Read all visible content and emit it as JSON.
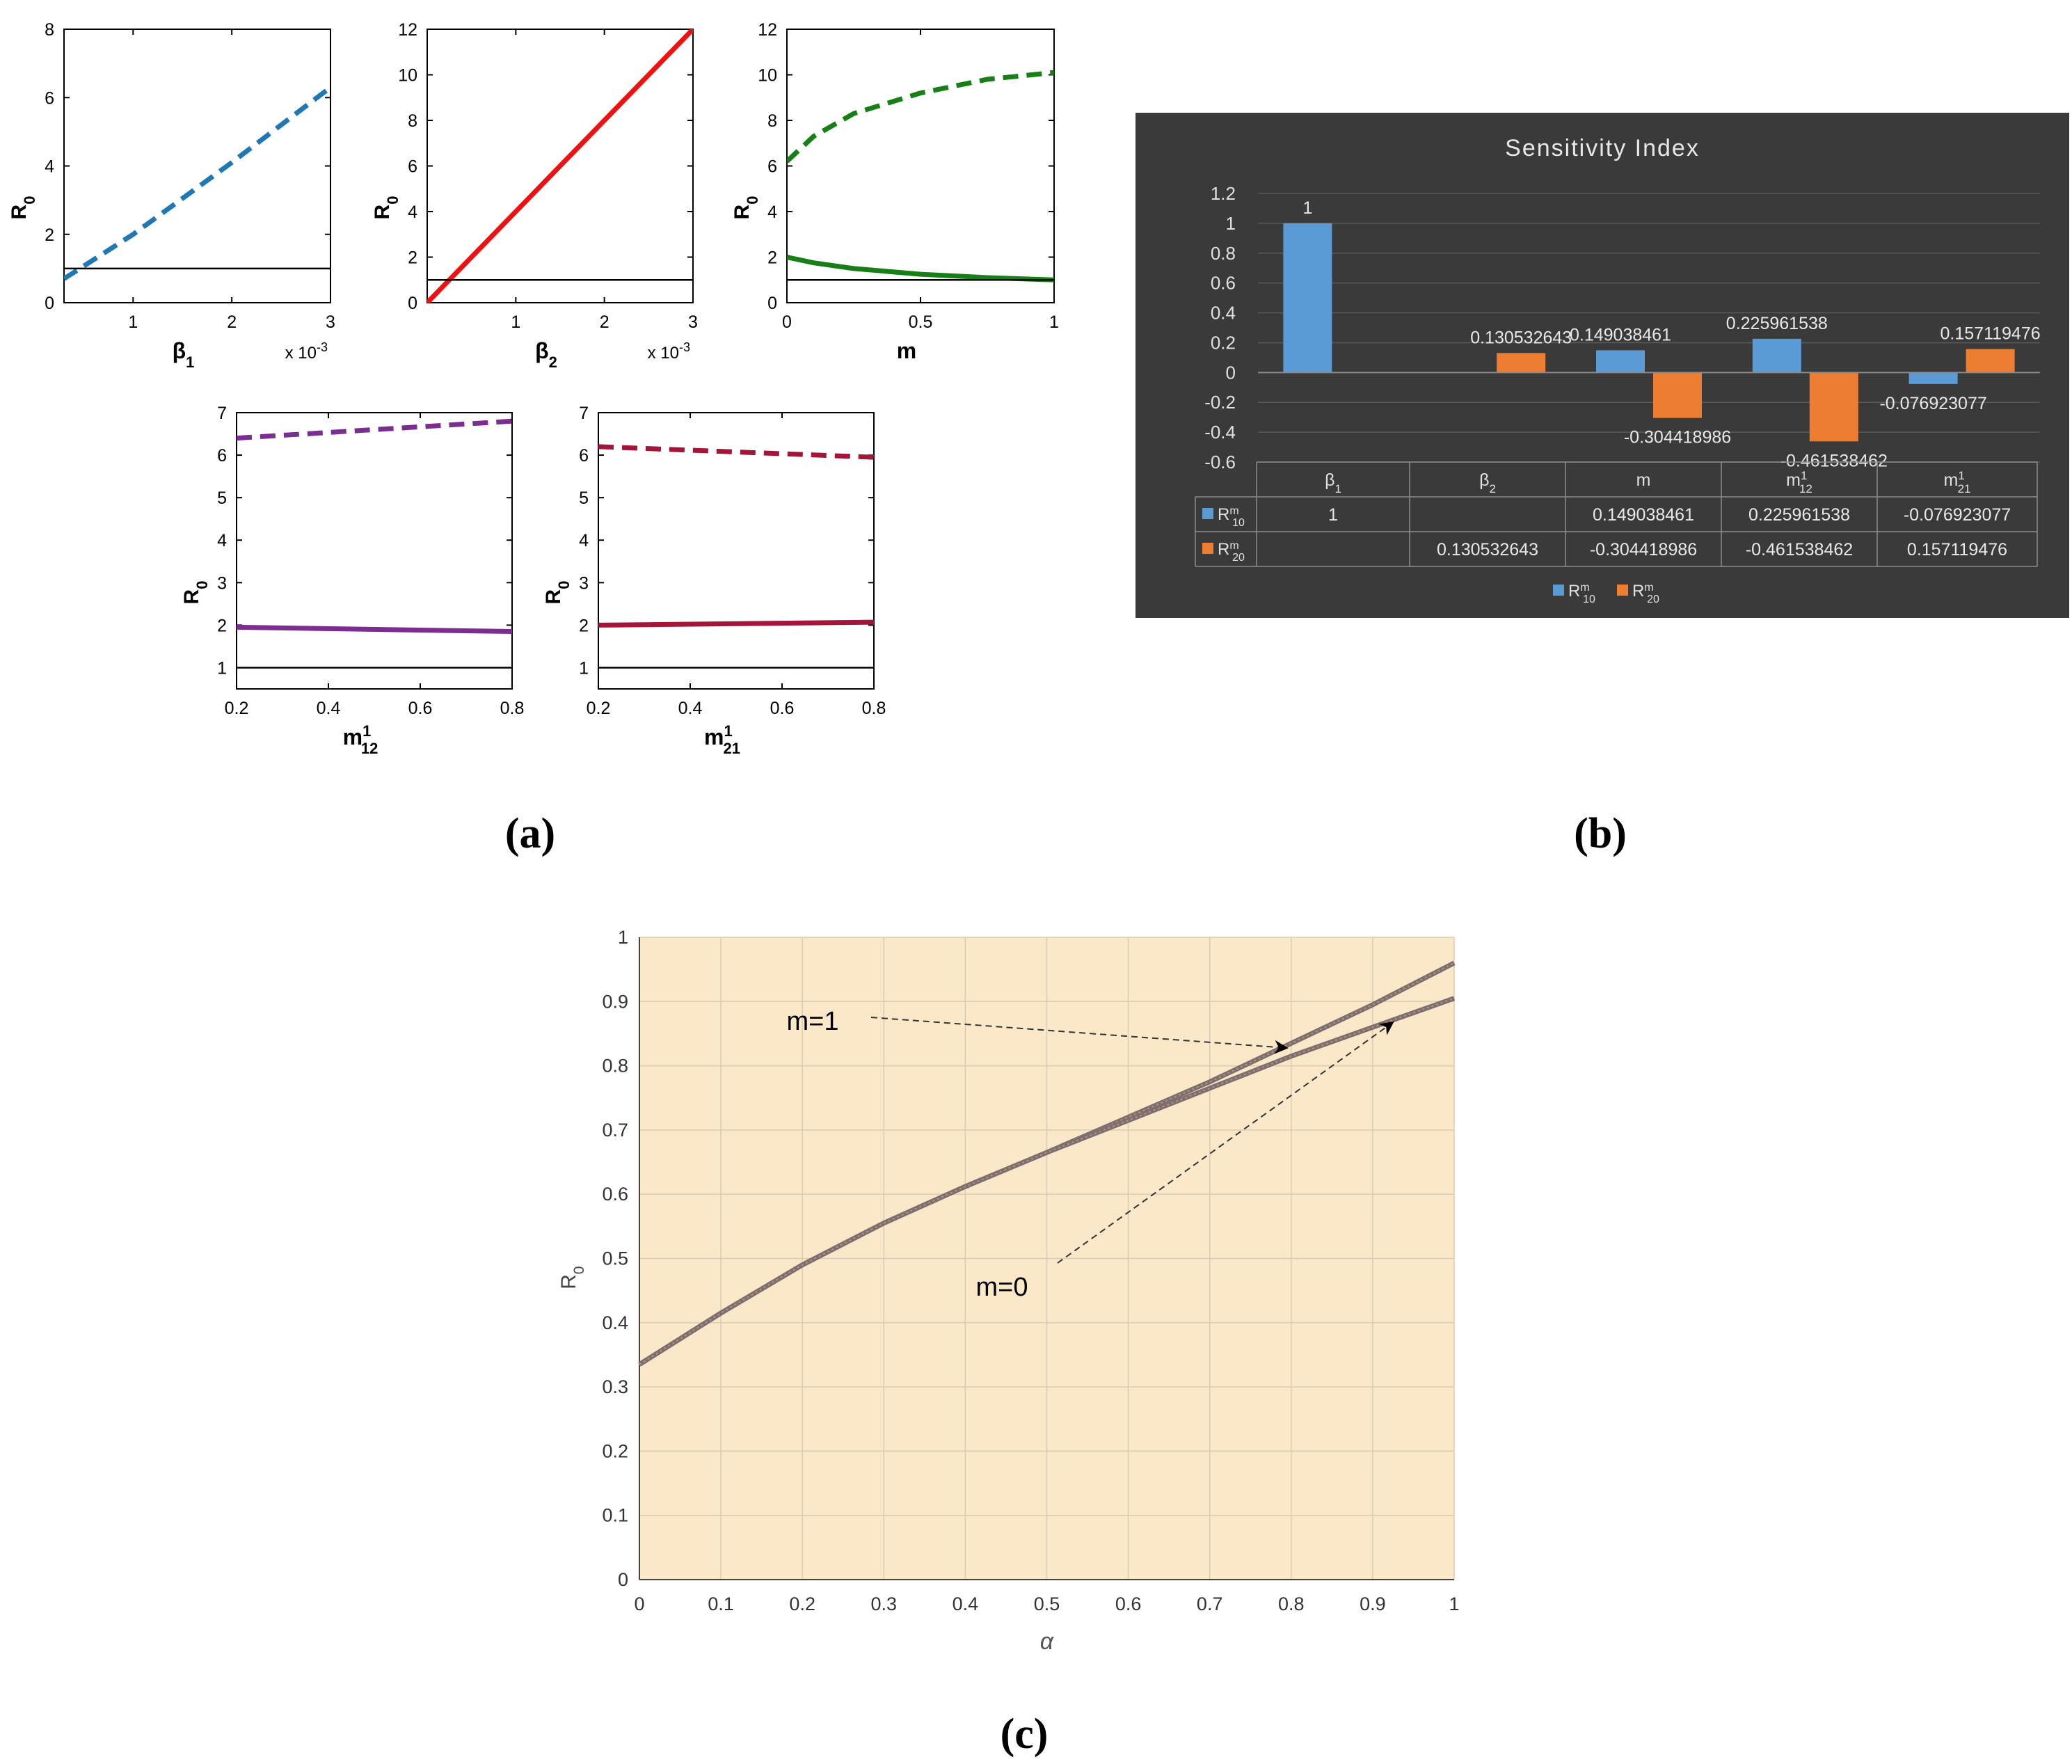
{
  "panel_labels": {
    "a": "(a)",
    "b": "(b)",
    "c": "(c)"
  },
  "colors": {
    "blue": "#1f77b4",
    "red": "#ee1111",
    "green": "#168016",
    "purple": "#7d2d91",
    "crimson": "#a3163a",
    "black": "#000000",
    "bar_blue": "#5b9bd5",
    "bar_orange": "#ed7d31",
    "dark_bg": "#3a3a3a",
    "orange_bg": "#fae8c8",
    "curve": "#7a7070"
  },
  "chart_data": [
    {
      "id": "beta1",
      "type": "line",
      "xlabel": "β",
      "xlabel_sub": "1",
      "x_multiplier": "x 10",
      "x_multiplier_exp": "-3",
      "ylabel": "R",
      "ylabel_sub": "0",
      "xlim": [
        0.3,
        3
      ],
      "ylim": [
        0,
        8
      ],
      "xticks": [
        1,
        2,
        3
      ],
      "xtick_labels": [
        "1",
        "2",
        "3"
      ],
      "yticks": [
        0,
        2,
        4,
        6,
        8
      ],
      "ytick_labels": [
        "0",
        "2",
        "4",
        "6",
        "8"
      ],
      "series": [
        {
          "name": "dashed",
          "style": "dashed",
          "color": "blue",
          "x": [
            0.3,
            1,
            2,
            3
          ],
          "y": [
            0.7,
            2.0,
            4.1,
            6.3
          ]
        },
        {
          "name": "threshold",
          "style": "solid",
          "color": "black",
          "x": [
            0.3,
            3
          ],
          "y": [
            1,
            1
          ]
        }
      ]
    },
    {
      "id": "beta2",
      "type": "line",
      "xlabel": "β",
      "xlabel_sub": "2",
      "x_multiplier": "x 10",
      "x_multiplier_exp": "-3",
      "ylabel": "R",
      "ylabel_sub": "0",
      "xlim": [
        0,
        3
      ],
      "ylim": [
        0,
        12
      ],
      "xticks": [
        1,
        2,
        3
      ],
      "xtick_labels": [
        "1",
        "2",
        "3"
      ],
      "yticks": [
        0,
        2,
        4,
        6,
        8,
        10,
        12
      ],
      "ytick_labels": [
        "0",
        "2",
        "4",
        "6",
        "8",
        "10",
        "12"
      ],
      "series": [
        {
          "name": "solid-red",
          "style": "solid",
          "color": "red",
          "x": [
            0,
            3
          ],
          "y": [
            0,
            12
          ]
        },
        {
          "name": "threshold",
          "style": "solid",
          "color": "black",
          "x": [
            0,
            3
          ],
          "y": [
            1,
            1
          ]
        }
      ]
    },
    {
      "id": "m",
      "type": "line",
      "xlabel": "m",
      "xlabel_sub": "",
      "x_multiplier": "",
      "x_multiplier_exp": "",
      "ylabel": "R",
      "ylabel_sub": "0",
      "xlim": [
        0,
        1
      ],
      "ylim": [
        0,
        12
      ],
      "xticks": [
        0,
        0.5,
        1
      ],
      "xtick_labels": [
        "0",
        "0.5",
        "1"
      ],
      "yticks": [
        0,
        2,
        4,
        6,
        8,
        10,
        12
      ],
      "ytick_labels": [
        "0",
        "2",
        "4",
        "6",
        "8",
        "10",
        "12"
      ],
      "series": [
        {
          "name": "dashed-green",
          "style": "dashed",
          "color": "green",
          "x": [
            0,
            0.1,
            0.25,
            0.5,
            0.75,
            1
          ],
          "y": [
            6.2,
            7.3,
            8.3,
            9.2,
            9.8,
            10.1
          ]
        },
        {
          "name": "solid-green",
          "style": "solid",
          "color": "green",
          "x": [
            0,
            0.1,
            0.25,
            0.5,
            0.75,
            1
          ],
          "y": [
            2.0,
            1.75,
            1.5,
            1.25,
            1.1,
            1.0
          ]
        },
        {
          "name": "threshold",
          "style": "solid",
          "color": "black",
          "x": [
            0,
            1
          ],
          "y": [
            1,
            1
          ]
        }
      ]
    },
    {
      "id": "m12",
      "type": "line",
      "xlabel": "m",
      "xlabel_sub": "12",
      "xlabel_sup": "1",
      "x_multiplier": "",
      "x_multiplier_exp": "",
      "ylabel": "R",
      "ylabel_sub": "0",
      "xlim": [
        0.2,
        0.8
      ],
      "ylim": [
        0.5,
        7
      ],
      "xticks": [
        0.2,
        0.4,
        0.6,
        0.8
      ],
      "xtick_labels": [
        "0.2",
        "0.4",
        "0.6",
        "0.8"
      ],
      "yticks": [
        1,
        2,
        3,
        4,
        5,
        6,
        7
      ],
      "ytick_labels": [
        "1",
        "2",
        "3",
        "4",
        "5",
        "6",
        "7"
      ],
      "series": [
        {
          "name": "dashed-purple",
          "style": "dashed",
          "color": "purple",
          "x": [
            0.2,
            0.8
          ],
          "y": [
            6.4,
            6.8
          ]
        },
        {
          "name": "solid-purple",
          "style": "solid",
          "color": "purple",
          "x": [
            0.2,
            0.8
          ],
          "y": [
            1.95,
            1.85
          ]
        },
        {
          "name": "threshold",
          "style": "solid",
          "color": "black",
          "x": [
            0.2,
            0.8
          ],
          "y": [
            1,
            1
          ]
        }
      ]
    },
    {
      "id": "m21",
      "type": "line",
      "xlabel": "m",
      "xlabel_sub": "21",
      "xlabel_sup": "1",
      "x_multiplier": "",
      "x_multiplier_exp": "",
      "ylabel": "R",
      "ylabel_sub": "0",
      "xlim": [
        0.2,
        0.8
      ],
      "ylim": [
        0.5,
        7
      ],
      "xticks": [
        0.2,
        0.4,
        0.6,
        0.8
      ],
      "xtick_labels": [
        "0.2",
        "0.4",
        "0.6",
        "0.8"
      ],
      "yticks": [
        1,
        2,
        3,
        4,
        5,
        6,
        7
      ],
      "ytick_labels": [
        "1",
        "2",
        "3",
        "4",
        "5",
        "6",
        "7"
      ],
      "series": [
        {
          "name": "dashed-crimson",
          "style": "dashed",
          "color": "crimson",
          "x": [
            0.2,
            0.8
          ],
          "y": [
            6.2,
            5.95
          ]
        },
        {
          "name": "solid-crimson",
          "style": "solid",
          "color": "crimson",
          "x": [
            0.2,
            0.8
          ],
          "y": [
            2.0,
            2.07
          ]
        },
        {
          "name": "threshold",
          "style": "solid",
          "color": "black",
          "x": [
            0.2,
            0.8
          ],
          "y": [
            1,
            1
          ]
        }
      ]
    },
    {
      "id": "sensitivity",
      "type": "bar",
      "title": "Sensitivity Index",
      "categories": [
        "β1",
        "β2",
        "m",
        "m12¹",
        "m21¹"
      ],
      "category_labels": [
        {
          "base": "β",
          "sub": "1",
          "sup": ""
        },
        {
          "base": "β",
          "sub": "2",
          "sup": ""
        },
        {
          "base": "m",
          "sub": "",
          "sup": ""
        },
        {
          "base": "m",
          "sub": "12",
          "sup": "1"
        },
        {
          "base": "m",
          "sub": "21",
          "sup": "1"
        }
      ],
      "ylim": [
        -0.6,
        1.2
      ],
      "yticks": [
        -0.6,
        -0.4,
        -0.2,
        0,
        0.2,
        0.4,
        0.6,
        0.8,
        1,
        1.2
      ],
      "ytick_labels": [
        "-0.6",
        "-0.4",
        "-0.2",
        "0",
        "0.2",
        "0.4",
        "0.6",
        "0.8",
        "1",
        "1.2"
      ],
      "series": [
        {
          "name": "R10m",
          "label_base": "R",
          "label_sub": "10",
          "label_sup": "m",
          "color": "bar_blue",
          "values": [
            1,
            null,
            0.149038461,
            0.225961538,
            -0.076923077
          ],
          "value_labels": [
            "1",
            "",
            "0.149038461",
            "0.225961538",
            "-0.076923077"
          ],
          "table_labels": [
            "1",
            "",
            "0.149038461",
            "0.225961538",
            "-0.076923077"
          ]
        },
        {
          "name": "R20m",
          "label_base": "R",
          "label_sub": "20",
          "label_sup": "m",
          "color": "bar_orange",
          "values": [
            null,
            0.130532643,
            -0.304418986,
            -0.461538462,
            0.157119476
          ],
          "value_labels": [
            "",
            "0.130532643",
            "-0.304418986",
            "-0.461538462",
            "0.157119476"
          ],
          "table_labels": [
            "",
            "0.130532643",
            "-0.304418986",
            "-0.461538462",
            "0.157119476"
          ]
        }
      ],
      "legend": "bottom"
    },
    {
      "id": "alpha",
      "type": "line",
      "xlabel": "α",
      "ylabel": "R",
      "ylabel_sub": "0",
      "xlim": [
        0,
        1
      ],
      "ylim": [
        0,
        1
      ],
      "xticks": [
        0,
        0.1,
        0.2,
        0.3,
        0.4,
        0.5,
        0.6,
        0.7,
        0.8,
        0.9,
        1
      ],
      "xtick_labels": [
        "0",
        "0.1",
        "0.2",
        "0.3",
        "0.4",
        "0.5",
        "0.6",
        "0.7",
        "0.8",
        "0.9",
        "1"
      ],
      "yticks": [
        0,
        0.1,
        0.2,
        0.3,
        0.4,
        0.5,
        0.6,
        0.7,
        0.8,
        0.9,
        1
      ],
      "ytick_labels": [
        "0",
        "0.1",
        "0.2",
        "0.3",
        "0.4",
        "0.5",
        "0.6",
        "0.7",
        "0.8",
        "0.9",
        "1"
      ],
      "grid": true,
      "series": [
        {
          "name": "m=1",
          "x": [
            0,
            0.1,
            0.2,
            0.3,
            0.4,
            0.5,
            0.6,
            0.7,
            0.8,
            0.9,
            1
          ],
          "y": [
            0.335,
            0.415,
            0.49,
            0.555,
            0.612,
            0.665,
            0.72,
            0.775,
            0.835,
            0.895,
            0.96
          ]
        },
        {
          "name": "m=0",
          "x": [
            0,
            0.1,
            0.2,
            0.3,
            0.4,
            0.5,
            0.6,
            0.7,
            0.8,
            0.9,
            1
          ],
          "y": [
            0.335,
            0.415,
            0.49,
            0.555,
            0.612,
            0.665,
            0.715,
            0.765,
            0.815,
            0.86,
            0.905
          ]
        }
      ],
      "annotations": [
        {
          "text": "m=1",
          "target_x": 0.8,
          "target_y": 0.832
        },
        {
          "text": "m=0",
          "target_x": 0.93,
          "target_y": 0.872
        }
      ]
    }
  ]
}
